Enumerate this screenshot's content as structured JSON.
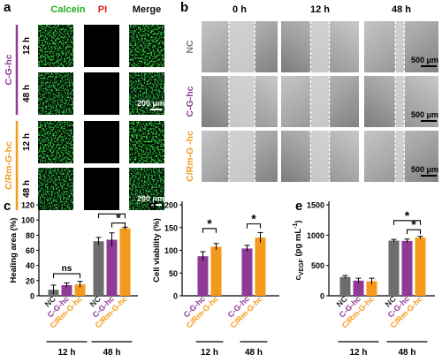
{
  "panels": {
    "a": {
      "letter": "a",
      "columns": [
        "Calcein",
        "PI",
        "Merge"
      ],
      "column_colors": [
        "#22b022",
        "#e02020",
        "#111111"
      ],
      "groups": [
        {
          "label": "C-G-hc",
          "color": "#8e3a96",
          "rows": [
            "12 h",
            "48 h"
          ]
        },
        {
          "label": "C/Rm-G-hc",
          "color": "#f39a1c",
          "rows": [
            "12 h",
            "48 h"
          ]
        }
      ],
      "scalebar": "200 μm"
    },
    "b": {
      "letter": "b",
      "columns": [
        "0 h",
        "12 h",
        "48 h"
      ],
      "rows": [
        {
          "label": "NC",
          "color": "#7a7a7a"
        },
        {
          "label": "C-G-hc",
          "color": "#8e3a96"
        },
        {
          "label": "C/Rm-G -hc",
          "color": "#f39a1c"
        }
      ],
      "scalebar": "500 μm"
    }
  },
  "chart_data": [
    {
      "letter": "c",
      "type": "bar",
      "ylabel": "Healing area (%)",
      "yticks": [
        0,
        20,
        40,
        60,
        80,
        100,
        120
      ],
      "ylim": [
        0,
        120
      ],
      "categories": [
        "NC",
        "C-G-hc",
        "C/Rm-G-hc",
        "NC",
        "C-G-hc",
        "C/Rm-G-hc"
      ],
      "category_colors": [
        "#6d6d6d",
        "#8e3a96",
        "#f39a1c",
        "#6d6d6d",
        "#8e3a96",
        "#f39a1c"
      ],
      "values": [
        8,
        14,
        15,
        72,
        74,
        89
      ],
      "errors": [
        6,
        3,
        4,
        5,
        9,
        1.5
      ],
      "groups": [
        {
          "label": "12 h",
          "count": 3
        },
        {
          "label": "48 h",
          "count": 3
        }
      ],
      "annotations": [
        {
          "text": "ns",
          "from": 0,
          "to": 2,
          "y": 29
        },
        {
          "text": "*",
          "from": 3,
          "to": 5,
          "y": 108
        },
        {
          "text": "*",
          "from": 4,
          "to": 5,
          "y": 96
        }
      ]
    },
    {
      "letter": "d",
      "type": "bar",
      "ylabel": "Cell viability (%)",
      "yticks": [
        0,
        50,
        100,
        150,
        200
      ],
      "ylim": [
        0,
        200
      ],
      "categories": [
        "C-G-hc",
        "C/Rm-G-hc",
        "C-G-hc",
        "C/Rm-G-hc"
      ],
      "category_colors": [
        "#8e3a96",
        "#f39a1c",
        "#8e3a96",
        "#f39a1c"
      ],
      "values": [
        87,
        108,
        104,
        128
      ],
      "errors": [
        10,
        7,
        7,
        11
      ],
      "groups": [
        {
          "label": "12 h",
          "count": 2
        },
        {
          "label": "48 h",
          "count": 2
        }
      ],
      "annotations": [
        {
          "text": "*",
          "from": 0,
          "to": 1,
          "y": 148
        },
        {
          "text": "*",
          "from": 2,
          "to": 3,
          "y": 158
        }
      ]
    },
    {
      "letter": "e",
      "type": "bar",
      "ylabel": "c",
      "ylabel_sub": "VEGF",
      "ylabel_unit": " (pg mL",
      "ylabel_sup": "-1",
      "ylabel_close": ")",
      "yticks": [
        0,
        500,
        1000,
        1500
      ],
      "ylim": [
        0,
        1500
      ],
      "categories": [
        "NC",
        "C-G-hc",
        "C/Rm-G-hc",
        "NC",
        "C-G-hc",
        "C/Rm-G-hc"
      ],
      "category_colors": [
        "#6d6d6d",
        "#8e3a96",
        "#f39a1c",
        "#6d6d6d",
        "#8e3a96",
        "#f39a1c"
      ],
      "values": [
        310,
        250,
        240,
        910,
        905,
        960
      ],
      "errors": [
        25,
        40,
        50,
        20,
        30,
        20
      ],
      "groups": [
        {
          "label": "12 h",
          "count": 3
        },
        {
          "label": "48 h",
          "count": 3
        }
      ],
      "annotations": [
        {
          "text": "*",
          "from": 3,
          "to": 5,
          "y": 1240
        },
        {
          "text": "*",
          "from": 4,
          "to": 5,
          "y": 1090
        }
      ]
    }
  ]
}
